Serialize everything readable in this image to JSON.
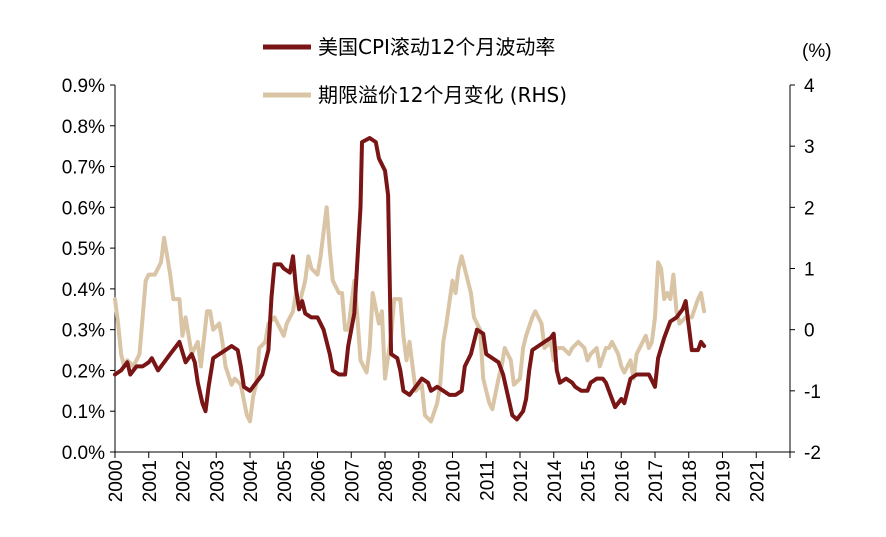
{
  "chart_data": {
    "type": "line",
    "title": "",
    "xlabel": "",
    "y_left_label": "",
    "y_right_label": "(%)",
    "x_range": [
      2000,
      2022
    ],
    "y_left_range": [
      0.0,
      0.9
    ],
    "y_right_range": [
      -2,
      4
    ],
    "grid": false,
    "x_tick_labels": [
      "2000",
      "2001",
      "2002",
      "2003",
      "2004",
      "2005",
      "2006",
      "2007",
      "2008",
      "2009",
      "2010",
      "2011",
      "2012",
      "2014",
      "2015",
      "2016",
      "2017",
      "2018",
      "2019",
      "2021"
    ],
    "y_left_tick_labels": [
      "0.0%",
      "0.1%",
      "0.2%",
      "0.3%",
      "0.4%",
      "0.5%",
      "0.6%",
      "0.7%",
      "0.8%",
      "0.9%"
    ],
    "y_right_tick_labels": [
      "-2",
      "-1",
      "0",
      "1",
      "2",
      "3",
      "4"
    ],
    "legend": {
      "position": "top-center",
      "entries": [
        "美国CPI滚动12个月波动率",
        "期限溢价12个月变化 (RHS)"
      ]
    },
    "series": [
      {
        "name": "美国CPI滚动12个月波动率",
        "axis": "left",
        "color": "#7a1515",
        "points": [
          [
            2000.0,
            0.19
          ],
          [
            2000.2,
            0.2
          ],
          [
            2000.4,
            0.22
          ],
          [
            2000.5,
            0.19
          ],
          [
            2000.7,
            0.21
          ],
          [
            2000.9,
            0.21
          ],
          [
            2001.1,
            0.22
          ],
          [
            2001.2,
            0.23
          ],
          [
            2001.4,
            0.2
          ],
          [
            2001.6,
            0.22
          ],
          [
            2001.8,
            0.24
          ],
          [
            2002.0,
            0.26
          ],
          [
            2002.1,
            0.27
          ],
          [
            2002.3,
            0.22
          ],
          [
            2002.5,
            0.24
          ],
          [
            2002.6,
            0.22
          ],
          [
            2002.7,
            0.17
          ],
          [
            2002.85,
            0.12
          ],
          [
            2002.95,
            0.1
          ],
          [
            2003.05,
            0.16
          ],
          [
            2003.2,
            0.23
          ],
          [
            2003.4,
            0.24
          ],
          [
            2003.6,
            0.25
          ],
          [
            2003.8,
            0.26
          ],
          [
            2004.0,
            0.25
          ],
          [
            2004.1,
            0.21
          ],
          [
            2004.2,
            0.16
          ],
          [
            2004.4,
            0.15
          ],
          [
            2004.6,
            0.17
          ],
          [
            2004.8,
            0.19
          ],
          [
            2004.9,
            0.22
          ],
          [
            2005.0,
            0.25
          ],
          [
            2005.1,
            0.38
          ],
          [
            2005.2,
            0.46
          ],
          [
            2005.4,
            0.46
          ],
          [
            2005.5,
            0.45
          ],
          [
            2005.7,
            0.44
          ],
          [
            2005.8,
            0.48
          ],
          [
            2005.9,
            0.4
          ],
          [
            2006.0,
            0.35
          ],
          [
            2006.1,
            0.37
          ],
          [
            2006.2,
            0.34
          ],
          [
            2006.4,
            0.33
          ],
          [
            2006.6,
            0.33
          ],
          [
            2006.8,
            0.3
          ],
          [
            2007.0,
            0.24
          ],
          [
            2007.1,
            0.2
          ],
          [
            2007.3,
            0.19
          ],
          [
            2007.5,
            0.19
          ],
          [
            2007.6,
            0.26
          ],
          [
            2007.8,
            0.34
          ],
          [
            2008.0,
            0.6
          ],
          [
            2008.05,
            0.76
          ],
          [
            2008.3,
            0.77
          ],
          [
            2008.5,
            0.76
          ],
          [
            2008.6,
            0.72
          ],
          [
            2008.8,
            0.69
          ],
          [
            2008.9,
            0.63
          ],
          [
            2009.0,
            0.24
          ],
          [
            2009.2,
            0.23
          ],
          [
            2009.3,
            0.2
          ],
          [
            2009.4,
            0.15
          ],
          [
            2009.6,
            0.14
          ],
          [
            2009.8,
            0.16
          ],
          [
            2010.0,
            0.18
          ],
          [
            2010.2,
            0.17
          ],
          [
            2010.3,
            0.15
          ],
          [
            2010.5,
            0.16
          ],
          [
            2010.7,
            0.15
          ],
          [
            2010.9,
            0.14
          ],
          [
            2011.1,
            0.14
          ],
          [
            2011.3,
            0.15
          ],
          [
            2011.4,
            0.21
          ],
          [
            2011.6,
            0.24
          ],
          [
            2011.8,
            0.3
          ],
          [
            2012.0,
            0.29
          ],
          [
            2012.1,
            0.24
          ],
          [
            2012.3,
            0.23
          ],
          [
            2012.5,
            0.22
          ],
          [
            2012.65,
            0.19
          ],
          [
            2012.8,
            0.14
          ],
          [
            2012.95,
            0.09
          ],
          [
            2013.1,
            0.08
          ],
          [
            2013.3,
            0.1
          ],
          [
            2013.4,
            0.13
          ],
          [
            2013.5,
            0.2
          ],
          [
            2013.6,
            0.25
          ],
          [
            2013.8,
            0.26
          ],
          [
            2014.0,
            0.27
          ],
          [
            2014.2,
            0.28
          ],
          [
            2014.3,
            0.29
          ],
          [
            2014.4,
            0.2
          ],
          [
            2014.5,
            0.17
          ],
          [
            2014.7,
            0.18
          ],
          [
            2014.9,
            0.17
          ],
          [
            2015.0,
            0.16
          ],
          [
            2015.2,
            0.15
          ],
          [
            2015.4,
            0.15
          ],
          [
            2015.5,
            0.17
          ],
          [
            2015.7,
            0.18
          ],
          [
            2015.9,
            0.18
          ],
          [
            2016.0,
            0.17
          ],
          [
            2016.2,
            0.13
          ],
          [
            2016.3,
            0.11
          ],
          [
            2016.5,
            0.13
          ],
          [
            2016.6,
            0.12
          ],
          [
            2016.8,
            0.18
          ],
          [
            2017.0,
            0.19
          ],
          [
            2017.2,
            0.19
          ],
          [
            2017.4,
            0.19
          ],
          [
            2017.6,
            0.16
          ],
          [
            2017.7,
            0.23
          ],
          [
            2017.9,
            0.28
          ],
          [
            2018.1,
            0.32
          ],
          [
            2018.3,
            0.33
          ],
          [
            2018.5,
            0.35
          ],
          [
            2018.6,
            0.37
          ],
          [
            2018.8,
            0.25
          ],
          [
            2019.0,
            0.25
          ],
          [
            2019.1,
            0.27
          ],
          [
            2019.2,
            0.26
          ]
        ]
      },
      {
        "name": "期限溢价12个月变化 (RHS)",
        "axis": "right",
        "color": "#d9c4a6",
        "points": [
          [
            2000.0,
            0.5
          ],
          [
            2000.1,
            0.1
          ],
          [
            2000.2,
            -0.4
          ],
          [
            2000.3,
            -0.6
          ],
          [
            2000.4,
            -0.5
          ],
          [
            2000.6,
            -0.6
          ],
          [
            2000.8,
            -0.4
          ],
          [
            2000.9,
            0.2
          ],
          [
            2001.0,
            0.8
          ],
          [
            2001.1,
            0.9
          ],
          [
            2001.3,
            0.9
          ],
          [
            2001.5,
            1.1
          ],
          [
            2001.6,
            1.5
          ],
          [
            2001.7,
            1.2
          ],
          [
            2001.8,
            0.9
          ],
          [
            2001.9,
            0.5
          ],
          [
            2002.1,
            0.5
          ],
          [
            2002.2,
            -0.1
          ],
          [
            2002.3,
            0.2
          ],
          [
            2002.5,
            -0.4
          ],
          [
            2002.7,
            -0.2
          ],
          [
            2002.8,
            -0.6
          ],
          [
            2003.0,
            0.3
          ],
          [
            2003.1,
            0.3
          ],
          [
            2003.2,
            0.0
          ],
          [
            2003.4,
            0.1
          ],
          [
            2003.5,
            -0.2
          ],
          [
            2003.6,
            -0.6
          ],
          [
            2003.8,
            -0.9
          ],
          [
            2003.9,
            -0.8
          ],
          [
            2004.1,
            -0.9
          ],
          [
            2004.3,
            -1.4
          ],
          [
            2004.4,
            -1.5
          ],
          [
            2004.5,
            -1.1
          ],
          [
            2004.6,
            -0.9
          ],
          [
            2004.7,
            -0.3
          ],
          [
            2004.9,
            -0.2
          ],
          [
            2005.0,
            0.1
          ],
          [
            2005.2,
            0.2
          ],
          [
            2005.3,
            0.1
          ],
          [
            2005.5,
            -0.1
          ],
          [
            2005.6,
            0.1
          ],
          [
            2005.8,
            0.3
          ],
          [
            2005.9,
            0.6
          ],
          [
            2006.0,
            0.4
          ],
          [
            2006.2,
            0.8
          ],
          [
            2006.3,
            1.2
          ],
          [
            2006.4,
            1.0
          ],
          [
            2006.6,
            0.9
          ],
          [
            2006.7,
            1.2
          ],
          [
            2006.8,
            1.6
          ],
          [
            2006.9,
            2.0
          ],
          [
            2007.0,
            1.3
          ],
          [
            2007.1,
            0.8
          ],
          [
            2007.3,
            0.6
          ],
          [
            2007.4,
            0.6
          ],
          [
            2007.5,
            0.0
          ],
          [
            2007.6,
            0.0
          ],
          [
            2007.8,
            0.8
          ],
          [
            2007.9,
            0.2
          ],
          [
            2008.0,
            -0.5
          ],
          [
            2008.2,
            -0.7
          ],
          [
            2008.3,
            -0.3
          ],
          [
            2008.4,
            0.6
          ],
          [
            2008.6,
            0.1
          ],
          [
            2008.7,
            0.3
          ],
          [
            2008.8,
            -0.8
          ],
          [
            2009.0,
            -0.1
          ],
          [
            2009.1,
            0.5
          ],
          [
            2009.3,
            0.5
          ],
          [
            2009.4,
            -0.1
          ],
          [
            2009.5,
            -0.5
          ],
          [
            2009.6,
            -0.2
          ],
          [
            2009.8,
            -1.0
          ],
          [
            2010.0,
            -0.9
          ],
          [
            2010.1,
            -1.4
          ],
          [
            2010.3,
            -1.5
          ],
          [
            2010.5,
            -1.2
          ],
          [
            2010.6,
            -0.9
          ],
          [
            2010.7,
            -0.2
          ],
          [
            2010.8,
            0.1
          ],
          [
            2011.0,
            0.8
          ],
          [
            2011.1,
            0.6
          ],
          [
            2011.2,
            1.0
          ],
          [
            2011.3,
            1.2
          ],
          [
            2011.5,
            0.8
          ],
          [
            2011.6,
            0.6
          ],
          [
            2011.7,
            0.2
          ],
          [
            2011.9,
            0.0
          ],
          [
            2012.0,
            -0.8
          ],
          [
            2012.1,
            -1.0
          ],
          [
            2012.2,
            -1.2
          ],
          [
            2012.3,
            -1.3
          ],
          [
            2012.5,
            -0.8
          ],
          [
            2012.6,
            -0.6
          ],
          [
            2012.7,
            -0.3
          ],
          [
            2012.9,
            -0.5
          ],
          [
            2013.0,
            -0.9
          ],
          [
            2013.2,
            -0.8
          ],
          [
            2013.3,
            -0.3
          ],
          [
            2013.4,
            -0.1
          ],
          [
            2013.6,
            0.2
          ],
          [
            2013.7,
            0.3
          ],
          [
            2013.9,
            0.1
          ],
          [
            2014.0,
            -0.3
          ],
          [
            2014.2,
            -0.2
          ],
          [
            2014.3,
            -0.5
          ],
          [
            2014.4,
            -0.3
          ],
          [
            2014.6,
            -0.3
          ],
          [
            2014.8,
            -0.4
          ],
          [
            2014.9,
            -0.3
          ],
          [
            2015.1,
            -0.2
          ],
          [
            2015.3,
            -0.3
          ],
          [
            2015.4,
            -0.5
          ],
          [
            2015.5,
            -0.4
          ],
          [
            2015.7,
            -0.3
          ],
          [
            2015.8,
            -0.6
          ],
          [
            2016.0,
            -0.3
          ],
          [
            2016.1,
            -0.3
          ],
          [
            2016.2,
            -0.2
          ],
          [
            2016.4,
            -0.4
          ],
          [
            2016.5,
            -0.6
          ],
          [
            2016.6,
            -0.7
          ],
          [
            2016.8,
            -0.5
          ],
          [
            2016.9,
            -0.8
          ],
          [
            2017.0,
            -0.4
          ],
          [
            2017.2,
            -0.2
          ],
          [
            2017.3,
            -0.1
          ],
          [
            2017.4,
            -0.3
          ],
          [
            2017.5,
            -0.2
          ],
          [
            2017.6,
            0.2
          ],
          [
            2017.7,
            1.1
          ],
          [
            2017.8,
            1.0
          ],
          [
            2017.9,
            0.5
          ],
          [
            2018.0,
            0.6
          ],
          [
            2018.1,
            0.5
          ],
          [
            2018.2,
            0.9
          ],
          [
            2018.3,
            0.3
          ],
          [
            2018.4,
            0.1
          ],
          [
            2018.6,
            0.2
          ],
          [
            2018.8,
            0.2
          ],
          [
            2019.0,
            0.5
          ],
          [
            2019.1,
            0.6
          ],
          [
            2019.2,
            0.3
          ]
        ]
      }
    ]
  }
}
